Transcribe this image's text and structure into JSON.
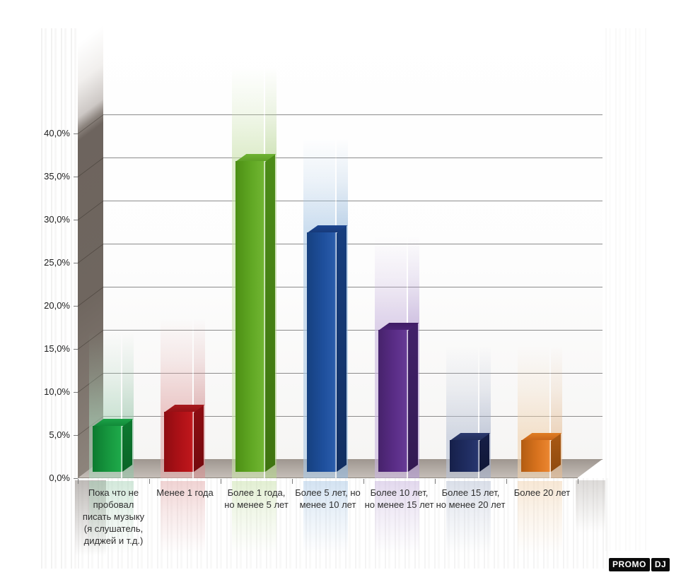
{
  "chart_data": {
    "type": "bar",
    "style": "3d-column-with-glow",
    "title": "",
    "unit": "%",
    "categories": [
      "Пока что не\nпробовал\nписать музыку\n(я слушатель,\nдиджей и т.д.)",
      "Менее 1 года",
      "Более 1 года,\nно менее 5 лет",
      "Более 5 лет, но\nменее 10 лет",
      "Более 10 лет,\nно менее 15 лет",
      "Более 15 лет,\nно менее 20 лет",
      "Более 20 лет"
    ],
    "values": [
      5.3,
      7.0,
      36.1,
      27.8,
      16.5,
      3.7,
      3.7
    ],
    "ytick_labels": [
      "0,0%",
      "5,0%",
      "10,0%",
      "15,0%",
      "20,0%",
      "25,0%",
      "30,0%",
      "35,0%",
      "40,0%"
    ],
    "ytick_values": [
      0,
      5,
      10,
      15,
      20,
      25,
      30,
      35,
      40
    ],
    "ylim": [
      0,
      50
    ],
    "grid": true,
    "legend": "none",
    "series_colors": [
      {
        "front": [
          "#0c7a2f",
          "#17983f",
          "#1ea94a"
        ],
        "side": [
          "#0d7a30",
          "#0a6426"
        ],
        "top": [
          "#1ba247",
          "#128a39"
        ],
        "glow": "168,211,184",
        "glow_side": "147,195,166"
      },
      {
        "front": [
          "#8e0c11",
          "#ae1117",
          "#c0171c"
        ],
        "side": [
          "#8e0d12",
          "#740a0e"
        ],
        "top": [
          "#a81b1f",
          "#961115"
        ],
        "glow": "226,168,168",
        "glow_side": "210,143,144"
      },
      {
        "front": [
          "#4c8f14",
          "#61a824",
          "#70b532"
        ],
        "side": [
          "#4c8c18",
          "#3f7410"
        ],
        "top": [
          "#6fb334",
          "#5da025"
        ],
        "glow": "199,224,167",
        "glow_side": "177,209,138"
      },
      {
        "front": [
          "#16407f",
          "#1e4f9c",
          "#2a5cab"
        ],
        "side": [
          "#173e7e",
          "#122f61"
        ],
        "top": [
          "#1d4690",
          "#173a7a"
        ],
        "glow": "168,199,229",
        "glow_side": "143,180,217"
      },
      {
        "front": [
          "#46226b",
          "#5a2d87",
          "#663a95"
        ],
        "side": [
          "#42216a",
          "#331a52"
        ],
        "top": [
          "#3f1c64",
          "#4b2375"
        ],
        "glow": "199,179,221",
        "glow_side": "175,150,207"
      },
      {
        "front": [
          "#16204a",
          "#1f2c60",
          "#28366e"
        ],
        "side": [
          "#161f48",
          "#101735"
        ],
        "top": [
          "#2c3a6e",
          "#232f5c"
        ],
        "glow": "182,192,212",
        "glow_side": "159,171,198"
      },
      {
        "front": [
          "#b25c12",
          "#d9731e",
          "#ea8630"
        ],
        "side": [
          "#aa5a15",
          "#8f4a0e"
        ],
        "top": [
          "#e07d24",
          "#c9671a"
        ],
        "glow": "240,209,172",
        "glow_side": "228,187,146"
      }
    ]
  },
  "watermark": {
    "text_left": "PROMO",
    "text_right": "DJ",
    "bg": "#0b0b0b",
    "fg": "#ffffff"
  },
  "frame_colors": {
    "grid_line": "#8c8c8c",
    "wall_dark": "#6d645e",
    "floor_top": "#9e968f",
    "floor_bottom": "#c6bfb9",
    "axis_text": "#1e1e1e"
  }
}
